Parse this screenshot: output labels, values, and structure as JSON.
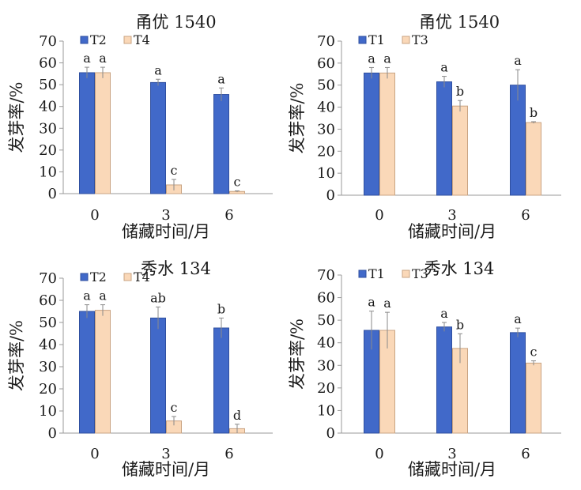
{
  "figure": {
    "colors": {
      "series_1": "#4169c9",
      "series_2": "#fad8b8",
      "series_1_stroke": "#2f4f9f",
      "series_2_stroke": "#c9a483",
      "error_bar": "#8a8a8a",
      "axis": "#9a9a9a"
    }
  },
  "chart_data": [
    {
      "type": "bar",
      "title": "甬优 1540",
      "xlabel": "储藏时间/月",
      "ylabel": "发芽率/%",
      "ylim": [
        0,
        70
      ],
      "yticks": [
        0,
        10,
        20,
        30,
        40,
        50,
        60,
        70
      ],
      "categories": [
        "0",
        "3",
        "6"
      ],
      "legend_position": "top-left",
      "grid": false,
      "series": [
        {
          "name": "T2",
          "values": [
            55.5,
            51.0,
            45.5
          ],
          "errors": [
            2.5,
            1.5,
            3.0
          ],
          "labels": [
            "a",
            "a",
            "a"
          ]
        },
        {
          "name": "T4",
          "values": [
            55.5,
            4.0,
            1.0
          ],
          "errors": [
            2.5,
            2.5,
            0.3
          ],
          "labels": [
            "a",
            "c",
            "c"
          ]
        }
      ]
    },
    {
      "type": "bar",
      "title": "甬优 1540",
      "xlabel": "储藏时间/月",
      "ylabel": "发芽率/%",
      "ylim": [
        0,
        70
      ],
      "yticks": [
        0,
        10,
        20,
        30,
        40,
        50,
        60,
        70
      ],
      "categories": [
        "0",
        "3",
        "6"
      ],
      "legend_position": "top-left",
      "grid": false,
      "series": [
        {
          "name": "T1",
          "values": [
            55.5,
            51.5,
            50.0
          ],
          "errors": [
            2.5,
            2.5,
            7.0
          ],
          "labels": [
            "a",
            "a",
            "a"
          ]
        },
        {
          "name": "T3",
          "values": [
            55.5,
            40.5,
            33.0
          ],
          "errors": [
            2.5,
            2.5,
            0.4
          ],
          "labels": [
            "a",
            "b",
            "b"
          ]
        }
      ]
    },
    {
      "type": "bar",
      "title": "秀水 134",
      "xlabel": "储藏时间/月",
      "ylabel": "发芽率/%",
      "ylim": [
        0,
        70
      ],
      "yticks": [
        0,
        10,
        20,
        30,
        40,
        50,
        60,
        70
      ],
      "categories": [
        "0",
        "3",
        "6"
      ],
      "legend_position": "top-left",
      "grid": false,
      "series": [
        {
          "name": "T2",
          "values": [
            55.0,
            52.0,
            47.5
          ],
          "errors": [
            3.0,
            5.0,
            4.5
          ],
          "labels": [
            "a",
            "ab",
            "b"
          ]
        },
        {
          "name": "T4",
          "values": [
            55.5,
            5.5,
            2.0
          ],
          "errors": [
            2.5,
            2.0,
            2.0
          ],
          "labels": [
            "a",
            "c",
            "d"
          ]
        }
      ]
    },
    {
      "type": "bar",
      "title": "秀水 134",
      "xlabel": "储藏时间/月",
      "ylabel": "发芽率/%",
      "ylim": [
        0,
        70
      ],
      "yticks": [
        0,
        10,
        20,
        30,
        40,
        50,
        60,
        70
      ],
      "categories": [
        "0",
        "3",
        "6"
      ],
      "legend_position": "top-left",
      "grid": false,
      "series": [
        {
          "name": "T1",
          "values": [
            45.5,
            47.0,
            44.5
          ],
          "errors": [
            8.5,
            2.0,
            2.0
          ],
          "labels": [
            "a",
            "a",
            "a"
          ]
        },
        {
          "name": "T3",
          "values": [
            45.5,
            37.5,
            31.0
          ],
          "errors": [
            8.0,
            6.5,
            1.0
          ],
          "labels": [
            "a",
            "b",
            "c"
          ]
        }
      ]
    }
  ]
}
